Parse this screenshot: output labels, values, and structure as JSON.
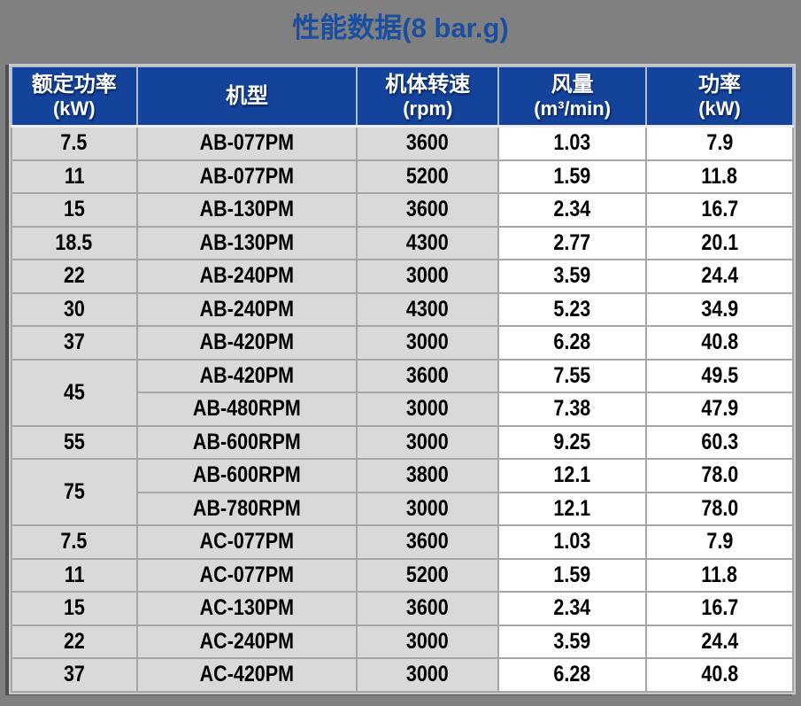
{
  "page": {
    "title": "性能数据(8 bar.g)",
    "colors": {
      "background": "#808080",
      "title_blue": "#1A4FA0",
      "header_blue": "#14439C",
      "gray_cell": "#D9D9D9",
      "white_cell": "#FFFFFF",
      "grid_line": "#A6A6A6"
    }
  },
  "table": {
    "headers": [
      {
        "line1": "额定功率",
        "line2": "(kW)"
      },
      {
        "line1": "机型",
        "line2": ""
      },
      {
        "line1": "机体转速",
        "line2": "(rpm)"
      },
      {
        "line1": "风量",
        "line2": "(m³/min)"
      },
      {
        "line1": "功率",
        "line2": "(kW)"
      }
    ],
    "rows": [
      {
        "rated": "7.5",
        "model": "AB-077PM",
        "speed": "3600",
        "flow": "1.03",
        "power": "7.9"
      },
      {
        "rated": "11",
        "model": "AB-077PM",
        "speed": "5200",
        "flow": "1.59",
        "power": "11.8"
      },
      {
        "rated": "15",
        "model": "AB-130PM",
        "speed": "3600",
        "flow": "2.34",
        "power": "16.7"
      },
      {
        "rated": "18.5",
        "model": "AB-130PM",
        "speed": "4300",
        "flow": "2.77",
        "power": "20.1"
      },
      {
        "rated": "22",
        "model": "AB-240PM",
        "speed": "3000",
        "flow": "3.59",
        "power": "24.4"
      },
      {
        "rated": "30",
        "model": "AB-240PM",
        "speed": "4300",
        "flow": "5.23",
        "power": "34.9"
      },
      {
        "rated": "37",
        "model": "AB-420PM",
        "speed": "3000",
        "flow": "6.28",
        "power": "40.8"
      },
      {
        "rated": "45",
        "model": "AB-420PM",
        "speed": "3600",
        "flow": "7.55",
        "power": "49.5"
      },
      {
        "model": "AB-480RPM",
        "speed": "3000",
        "flow": "7.38",
        "power": "47.9"
      },
      {
        "rated": "55",
        "model": "AB-600RPM",
        "speed": "3000",
        "flow": "9.25",
        "power": "60.3"
      },
      {
        "rated": "75",
        "model": "AB-600RPM",
        "speed": "3800",
        "flow": "12.1",
        "power": "78.0"
      },
      {
        "model": "AB-780RPM",
        "speed": "3000",
        "flow": "12.1",
        "power": "78.0"
      },
      {
        "rated": "7.5",
        "model": "AC-077PM",
        "speed": "3600",
        "flow": "1.03",
        "power": "7.9"
      },
      {
        "rated": "11",
        "model": "AC-077PM",
        "speed": "5200",
        "flow": "1.59",
        "power": "11.8"
      },
      {
        "rated": "15",
        "model": "AC-130PM",
        "speed": "3600",
        "flow": "2.34",
        "power": "16.7"
      },
      {
        "rated": "22",
        "model": "AC-240PM",
        "speed": "3000",
        "flow": "3.59",
        "power": "24.4"
      },
      {
        "rated": "37",
        "model": "AC-420PM",
        "speed": "3000",
        "flow": "6.28",
        "power": "40.8"
      }
    ]
  }
}
